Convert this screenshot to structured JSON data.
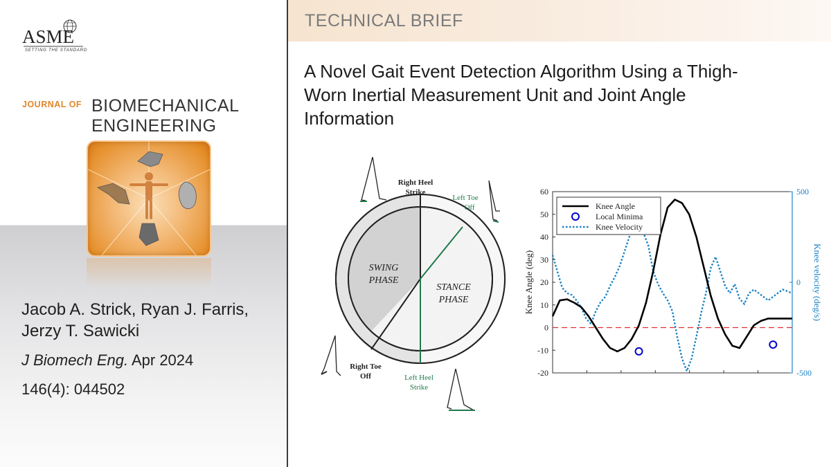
{
  "publisher": {
    "logo_text": "ASME",
    "tagline": "SETTING THE STANDARD"
  },
  "journal": {
    "prefix": "JOURNAL OF",
    "name_line1": "BIOMECHANICAL",
    "name_line2": "ENGINEERING"
  },
  "authors": "Jacob A. Strick, Ryan J. Farris, Jerzy T. Sawicki",
  "citation": {
    "journal_abbrev": "J Biomech Eng.",
    "date": " Apr 2024",
    "volume": "146(4): 044502"
  },
  "banner": {
    "label": "TECHNICAL BRIEF"
  },
  "paper": {
    "title": "A Novel Gait Event Detection Algorithm Using a Thigh-Worn Inertial Measurement Unit and Joint Angle Information"
  },
  "gait_diagram": {
    "right_heel_strike": [
      "Right Heel",
      "Strike"
    ],
    "left_toe_off": [
      "Left Toe",
      "Off"
    ],
    "right_toe_off": [
      "Right Toe",
      "Off"
    ],
    "left_heel_strike": [
      "Left Heel",
      "Strike"
    ],
    "swing_phase": [
      "SWING",
      "PHASE"
    ],
    "stance_phase": [
      "STANCE",
      "PHASE"
    ]
  },
  "chart_data": {
    "type": "line",
    "title": "",
    "xlabel": "",
    "ylabel": "Knee Angle (deg)",
    "ylabel_right": "Knee velocity (deg/s)",
    "ylim": [
      -20,
      60
    ],
    "ylim_right": [
      -500,
      500
    ],
    "yticks": [
      -20,
      -10,
      0,
      10,
      20,
      30,
      40,
      50,
      60
    ],
    "yticks_right": [
      -500,
      0,
      500
    ],
    "xlim": [
      0,
      100
    ],
    "legend": [
      "Knee Angle",
      "Local Minima",
      "Knee Velocity"
    ],
    "legend_position": "top-left",
    "colors": {
      "knee_angle": "#000000",
      "local_minima": "#0000cc",
      "knee_velocity": "#1a82c4",
      "zero_line": "#e03030",
      "right_axis": "#1a82c4"
    },
    "series": [
      {
        "name": "Knee Angle",
        "axis": "left",
        "x": [
          0,
          3,
          6,
          9,
          12,
          15,
          18,
          21,
          24,
          27,
          30,
          33,
          36,
          39,
          42,
          45,
          48,
          51,
          54,
          57,
          60,
          63,
          66,
          69,
          72,
          75,
          78,
          81,
          84,
          87,
          90,
          93,
          96,
          99,
          100
        ],
        "y": [
          5,
          12,
          12.5,
          11,
          9,
          5,
          0,
          -5,
          -9,
          -10.5,
          -9,
          -5,
          1,
          11,
          25,
          41,
          53,
          56.5,
          55,
          50,
          40,
          27,
          14,
          4,
          -3,
          -8,
          -9,
          -4,
          1,
          3,
          4,
          4,
          4,
          4,
          4
        ]
      },
      {
        "name": "Knee Velocity",
        "axis": "right",
        "x": [
          0,
          2,
          4,
          6,
          8,
          10,
          12,
          14,
          16,
          18,
          20,
          22,
          24,
          26,
          28,
          30,
          32,
          34,
          36,
          38,
          40,
          42,
          44,
          46,
          48,
          50,
          52,
          54,
          56,
          58,
          60,
          62,
          64,
          66,
          68,
          70,
          72,
          74,
          76,
          78,
          80,
          82,
          84,
          86,
          88,
          90,
          92,
          94,
          96,
          98,
          100
        ],
        "y": [
          150,
          60,
          -30,
          -60,
          -70,
          -100,
          -140,
          -200,
          -230,
          -160,
          -110,
          -80,
          -20,
          30,
          90,
          170,
          250,
          330,
          330,
          270,
          200,
          60,
          -10,
          -60,
          -100,
          -160,
          -300,
          -420,
          -490,
          -420,
          -300,
          -170,
          -60,
          80,
          140,
          60,
          -20,
          -60,
          -10,
          -90,
          -120,
          -60,
          -40,
          -60,
          -80,
          -100,
          -80,
          -60,
          -40,
          -50,
          -60
        ]
      },
      {
        "name": "Local Minima",
        "axis": "left",
        "marker": "circle",
        "x": [
          36,
          92
        ],
        "y": [
          -10.5,
          -7.5
        ]
      }
    ],
    "reference_line": {
      "axis": "left",
      "y": 0,
      "style": "dashed"
    }
  }
}
